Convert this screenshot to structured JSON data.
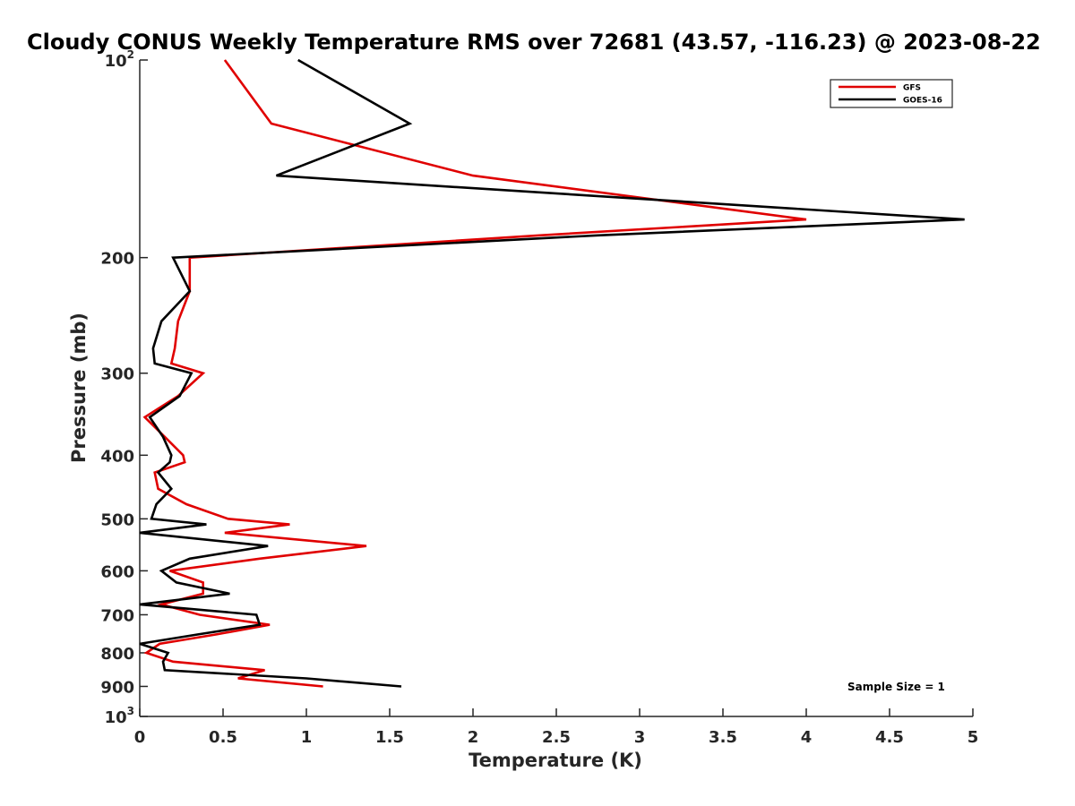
{
  "chart_data": {
    "type": "line",
    "title": "Cloudy CONUS Weekly Temperature RMS over 72681 (43.57, -116.23) @ 2023-08-22",
    "xlabel": "Temperature (K)",
    "ylabel": "Pressure (mb)",
    "xlim": [
      0,
      5
    ],
    "ylim": [
      100,
      1000
    ],
    "y_scale": "log",
    "y_reversed": true,
    "grid": false,
    "legend_position": "top-right",
    "x_ticks": [
      "0",
      "0.5",
      "1",
      "1.5",
      "2",
      "2.5",
      "3",
      "3.5",
      "4",
      "4.5",
      "5"
    ],
    "y_ticks": [
      {
        "value": 100,
        "base": "10",
        "exp": "2"
      },
      {
        "value": 200,
        "label": "200"
      },
      {
        "value": 300,
        "label": "300"
      },
      {
        "value": 400,
        "label": "400"
      },
      {
        "value": 500,
        "label": "500"
      },
      {
        "value": 600,
        "label": "600"
      },
      {
        "value": 700,
        "label": "700"
      },
      {
        "value": 800,
        "label": "800"
      },
      {
        "value": 900,
        "label": "900"
      },
      {
        "value": 1000,
        "base": "10",
        "exp": "3"
      }
    ],
    "annotation": "Sample Size = 1",
    "series": [
      {
        "name": "GFS",
        "color": "#e00000",
        "points": [
          [
            0.51,
            100
          ],
          [
            0.79,
            125
          ],
          [
            2.0,
            150
          ],
          [
            4.0,
            175
          ],
          [
            2.4,
            185
          ],
          [
            0.3,
            200
          ],
          [
            0.3,
            225
          ],
          [
            0.23,
            250
          ],
          [
            0.21,
            275
          ],
          [
            0.19,
            290
          ],
          [
            0.38,
            300
          ],
          [
            0.23,
            325
          ],
          [
            0.03,
            350
          ],
          [
            0.15,
            375
          ],
          [
            0.26,
            400
          ],
          [
            0.27,
            410
          ],
          [
            0.09,
            425
          ],
          [
            0.11,
            450
          ],
          [
            0.28,
            475
          ],
          [
            0.53,
            500
          ],
          [
            0.9,
            510
          ],
          [
            0.51,
            525
          ],
          [
            1.36,
            550
          ],
          [
            0.72,
            575
          ],
          [
            0.18,
            600
          ],
          [
            0.38,
            625
          ],
          [
            0.38,
            650
          ],
          [
            0.13,
            675
          ],
          [
            0.36,
            700
          ],
          [
            0.78,
            725
          ],
          [
            0.46,
            750
          ],
          [
            0.12,
            775
          ],
          [
            0.04,
            800
          ],
          [
            0.2,
            825
          ],
          [
            0.75,
            850
          ],
          [
            0.59,
            875
          ],
          [
            1.1,
            900
          ]
        ]
      },
      {
        "name": "GOES-16",
        "color": "#000000",
        "points": [
          [
            0.95,
            100
          ],
          [
            1.62,
            125
          ],
          [
            0.82,
            150
          ],
          [
            4.95,
            175
          ],
          [
            2.75,
            185
          ],
          [
            0.2,
            200
          ],
          [
            0.3,
            225
          ],
          [
            0.13,
            250
          ],
          [
            0.08,
            275
          ],
          [
            0.09,
            290
          ],
          [
            0.31,
            300
          ],
          [
            0.24,
            325
          ],
          [
            0.06,
            350
          ],
          [
            0.14,
            375
          ],
          [
            0.19,
            400
          ],
          [
            0.18,
            410
          ],
          [
            0.11,
            425
          ],
          [
            0.19,
            450
          ],
          [
            0.1,
            475
          ],
          [
            0.07,
            500
          ],
          [
            0.4,
            510
          ],
          [
            0.0,
            525
          ],
          [
            0.77,
            550
          ],
          [
            0.3,
            575
          ],
          [
            0.13,
            600
          ],
          [
            0.22,
            625
          ],
          [
            0.54,
            650
          ],
          [
            0.0,
            675
          ],
          [
            0.7,
            700
          ],
          [
            0.72,
            725
          ],
          [
            0.35,
            750
          ],
          [
            0.0,
            775
          ],
          [
            0.17,
            800
          ],
          [
            0.14,
            825
          ],
          [
            0.15,
            850
          ],
          [
            1.0,
            875
          ],
          [
            1.57,
            900
          ]
        ]
      }
    ]
  }
}
